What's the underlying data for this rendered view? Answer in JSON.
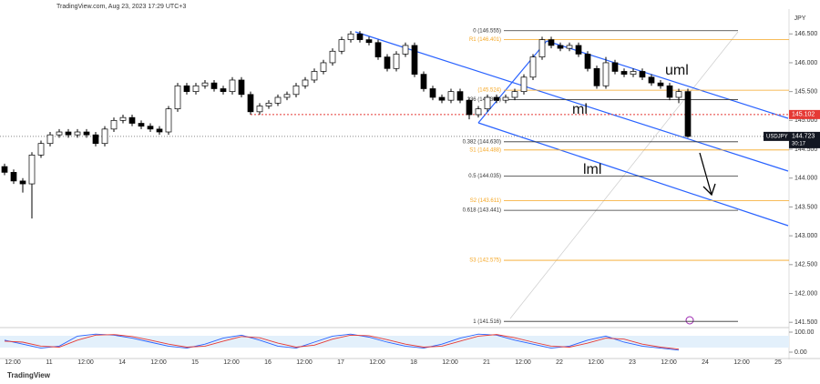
{
  "chart_data": {
    "type": "candlestick",
    "title": "TradingView.com, Aug 23, 2023 17:29 UTC+3",
    "currency": "JPY",
    "brand": "TradingView",
    "ylim": [
      141.44,
      146.93
    ],
    "yticks": [
      {
        "value": 141.5,
        "label": "141.500"
      },
      {
        "value": 142,
        "label": "142.000"
      },
      {
        "value": 142.5,
        "label": "142.500"
      },
      {
        "value": 143,
        "label": "143.000"
      },
      {
        "value": 143.5,
        "label": "143.500"
      },
      {
        "value": 144,
        "label": "144.000"
      },
      {
        "value": 144.5,
        "label": "144.500"
      },
      {
        "value": 145,
        "label": "145.000"
      },
      {
        "value": 145.5,
        "label": "145.500"
      },
      {
        "value": 146,
        "label": "146.000"
      },
      {
        "value": 146.5,
        "label": "146.500"
      }
    ],
    "time_labels": [
      "12:00",
      "11",
      "12:00",
      "14",
      "12:00",
      "15",
      "12:00",
      "16",
      "12:00",
      "17",
      "12:00",
      "18",
      "12:00",
      "21",
      "12:00",
      "22",
      "12:00",
      "23",
      "12:00",
      "24",
      "12:00",
      "25"
    ],
    "series": [
      {
        "name": "USDJPY",
        "up_color": "#ffffff",
        "down_color": "#000000",
        "values": [
          [
            144.2,
            144.25,
            144.05,
            144.1
          ],
          [
            144.1,
            144.15,
            143.9,
            143.95
          ],
          [
            143.95,
            144.0,
            143.75,
            143.9
          ],
          [
            143.9,
            144.45,
            143.3,
            144.4
          ],
          [
            144.4,
            144.65,
            144.35,
            144.6
          ],
          [
            144.6,
            144.8,
            144.55,
            144.75
          ],
          [
            144.75,
            144.85,
            144.7,
            144.8
          ],
          [
            144.8,
            144.85,
            144.7,
            144.75
          ],
          [
            144.75,
            144.85,
            144.7,
            144.8
          ],
          [
            144.8,
            144.85,
            144.7,
            144.75
          ],
          [
            144.75,
            144.8,
            144.55,
            144.6
          ],
          [
            144.6,
            144.9,
            144.55,
            144.85
          ],
          [
            144.85,
            145.05,
            144.8,
            145.0
          ],
          [
            145.0,
            145.1,
            144.95,
            145.05
          ],
          [
            145.05,
            145.1,
            144.9,
            144.95
          ],
          [
            144.95,
            145.0,
            144.85,
            144.9
          ],
          [
            144.9,
            144.95,
            144.8,
            144.85
          ],
          [
            144.85,
            144.9,
            144.75,
            144.8
          ],
          [
            144.8,
            145.25,
            144.75,
            145.2
          ],
          [
            145.2,
            145.65,
            145.15,
            145.6
          ],
          [
            145.6,
            145.65,
            145.45,
            145.5
          ],
          [
            145.5,
            145.65,
            145.45,
            145.6
          ],
          [
            145.6,
            145.7,
            145.55,
            145.65
          ],
          [
            145.65,
            145.7,
            145.5,
            145.55
          ],
          [
            145.55,
            145.6,
            145.45,
            145.5
          ],
          [
            145.5,
            145.75,
            145.45,
            145.7
          ],
          [
            145.7,
            145.75,
            145.4,
            145.45
          ],
          [
            145.45,
            145.5,
            145.1,
            145.15
          ],
          [
            145.15,
            145.3,
            145.1,
            145.25
          ],
          [
            145.25,
            145.35,
            145.2,
            145.3
          ],
          [
            145.3,
            145.45,
            145.25,
            145.4
          ],
          [
            145.4,
            145.5,
            145.35,
            145.45
          ],
          [
            145.45,
            145.65,
            145.4,
            145.6
          ],
          [
            145.6,
            145.75,
            145.55,
            145.7
          ],
          [
            145.7,
            145.9,
            145.65,
            145.85
          ],
          [
            145.85,
            146.05,
            145.8,
            146.0
          ],
          [
            146.0,
            146.25,
            145.95,
            146.2
          ],
          [
            146.2,
            146.45,
            146.15,
            146.4
          ],
          [
            146.4,
            146.55,
            146.35,
            146.5
          ],
          [
            146.5,
            146.55,
            146.35,
            146.4
          ],
          [
            146.4,
            146.45,
            146.3,
            146.35
          ],
          [
            146.35,
            146.4,
            146.05,
            146.1
          ],
          [
            146.1,
            146.15,
            145.85,
            145.9
          ],
          [
            145.9,
            146.2,
            145.85,
            146.15
          ],
          [
            146.15,
            146.35,
            146.1,
            146.3
          ],
          [
            146.3,
            146.35,
            145.75,
            145.8
          ],
          [
            145.8,
            145.85,
            145.5,
            145.55
          ],
          [
            145.55,
            145.6,
            145.35,
            145.4
          ],
          [
            145.4,
            145.45,
            145.3,
            145.35
          ],
          [
            145.35,
            145.55,
            145.3,
            145.5
          ],
          [
            145.5,
            145.55,
            145.3,
            145.35
          ],
          [
            145.35,
            145.4,
            145.02,
            145.1
          ],
          [
            145.1,
            145.25,
            145.05,
            145.2
          ],
          [
            145.2,
            145.45,
            145.15,
            145.4
          ],
          [
            145.4,
            145.45,
            145.3,
            145.35
          ],
          [
            145.35,
            145.45,
            145.3,
            145.4
          ],
          [
            145.4,
            145.55,
            145.35,
            145.5
          ],
          [
            145.5,
            145.8,
            145.45,
            145.75
          ],
          [
            145.75,
            146.15,
            145.7,
            146.1
          ],
          [
            146.1,
            146.45,
            146.05,
            146.4
          ],
          [
            146.4,
            146.45,
            146.25,
            146.3
          ],
          [
            146.3,
            146.35,
            146.2,
            146.25
          ],
          [
            146.25,
            146.35,
            146.2,
            146.3
          ],
          [
            146.3,
            146.35,
            146.1,
            146.15
          ],
          [
            146.15,
            146.2,
            145.85,
            145.9
          ],
          [
            145.9,
            145.95,
            145.55,
            145.6
          ],
          [
            145.6,
            146.1,
            145.55,
            146.0
          ],
          [
            146.0,
            146.05,
            145.8,
            145.85
          ],
          [
            145.85,
            145.9,
            145.75,
            145.8
          ],
          [
            145.8,
            145.9,
            145.75,
            145.85
          ],
          [
            145.85,
            145.9,
            145.7,
            145.75
          ],
          [
            145.75,
            145.8,
            145.6,
            145.65
          ],
          [
            145.65,
            145.7,
            145.55,
            145.6
          ],
          [
            145.6,
            145.65,
            145.35,
            145.4
          ],
          [
            145.4,
            145.55,
            145.3,
            145.5
          ],
          [
            145.5,
            145.55,
            144.7,
            144.723
          ]
        ]
      }
    ],
    "last_price": 144.723,
    "countdown": "30:17",
    "marked_price": {
      "value": 145.102,
      "color": "#e53935"
    },
    "levels": [
      {
        "label": "0 (146.555)",
        "value": 146.555,
        "color": "#333333",
        "kind": "fib"
      },
      {
        "label": "R1 (146.401)",
        "value": 146.401,
        "color": "#f5a623",
        "kind": "pivot"
      },
      {
        "label": "(145.524)",
        "value": 145.524,
        "color": "#f5a623",
        "kind": "pivot"
      },
      {
        "label": "236 (145.361)",
        "value": 145.361,
        "color": "#333333",
        "kind": "fib"
      },
      {
        "label": "0.382 (144.630)",
        "value": 144.63,
        "color": "#333333",
        "kind": "fib"
      },
      {
        "label": "S1 (144.488)",
        "value": 144.488,
        "color": "#f5a623",
        "kind": "pivot"
      },
      {
        "label": "0.5 (144.035)",
        "value": 144.035,
        "color": "#333333",
        "kind": "fib"
      },
      {
        "label": "S2 (143.611)",
        "value": 143.611,
        "color": "#f5a623",
        "kind": "pivot"
      },
      {
        "label": "0.618 (143.441)",
        "value": 143.441,
        "color": "#333333",
        "kind": "fib"
      },
      {
        "label": "S3 (142.575)",
        "value": 142.575,
        "color": "#f5a623",
        "kind": "pivot"
      },
      {
        "label": "1 (141.516)",
        "value": 141.516,
        "color": "#333333",
        "kind": "fib"
      }
    ],
    "annotations": [
      "uml",
      "ml",
      "lml"
    ],
    "oscillator": {
      "ylim": [
        0,
        100
      ],
      "yticks": [
        {
          "value": 0,
          "label": "0.00"
        },
        {
          "value": 100,
          "label": "100.00"
        }
      ],
      "series": [
        {
          "color": "#2962ff",
          "values": [
            60,
            40,
            20,
            30,
            80,
            90,
            85,
            70,
            50,
            30,
            20,
            40,
            70,
            85,
            60,
            30,
            20,
            50,
            80,
            90,
            75,
            50,
            30,
            20,
            40,
            70,
            90,
            85,
            60,
            40,
            20,
            30,
            60,
            80,
            50,
            30,
            20,
            10
          ]
        },
        {
          "color": "#e53935",
          "values": [
            55,
            50,
            30,
            25,
            60,
            85,
            88,
            78,
            60,
            40,
            25,
            30,
            55,
            78,
            72,
            45,
            25,
            35,
            65,
            85,
            82,
            62,
            40,
            25,
            30,
            55,
            80,
            88,
            72,
            50,
            30,
            25,
            45,
            70,
            65,
            40,
            25,
            15
          ]
        }
      ]
    }
  }
}
